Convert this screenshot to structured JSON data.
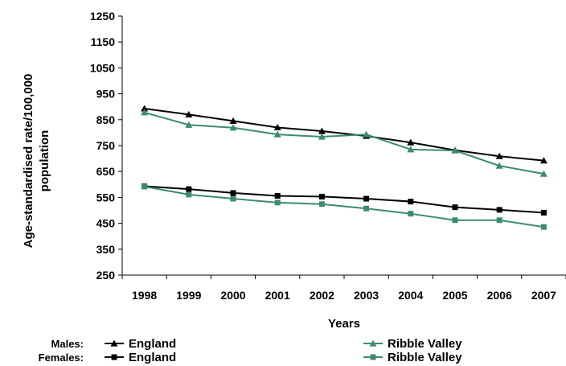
{
  "chart_data": {
    "type": "line",
    "x": [
      "1998",
      "1999",
      "2000",
      "2001",
      "2002",
      "2003",
      "2004",
      "2005",
      "2006",
      "2007"
    ],
    "xlabel": "Years",
    "ylabel_lines": [
      "Age-standardised rate/100,000",
      "population"
    ],
    "ylim": [
      250,
      1250
    ],
    "yticks": [
      250,
      350,
      450,
      550,
      650,
      750,
      850,
      950,
      1050,
      1150,
      1250
    ],
    "grid": false,
    "legend": {
      "placement": "bottom",
      "groups": [
        "Males:",
        "Females:"
      ],
      "entries": [
        "England",
        "Ribble Valley",
        "England",
        "Ribble Valley"
      ]
    },
    "series": [
      {
        "name": "England",
        "group": "Males",
        "marker": "triangle",
        "color": "#000000",
        "values": [
          893,
          870,
          845,
          820,
          806,
          787,
          762,
          732,
          709,
          692
        ]
      },
      {
        "name": "Ribble Valley",
        "group": "Males",
        "marker": "triangle",
        "color": "#3c8c6e",
        "values": [
          878,
          830,
          819,
          793,
          784,
          793,
          735,
          731,
          672,
          641
        ]
      },
      {
        "name": "England",
        "group": "Females",
        "marker": "square",
        "color": "#000000",
        "values": [
          593,
          582,
          567,
          556,
          553,
          545,
          534,
          512,
          502,
          491
        ]
      },
      {
        "name": "Ribble Valley",
        "group": "Females",
        "marker": "square",
        "color": "#3c8c6e",
        "values": [
          592,
          561,
          545,
          530,
          524,
          507,
          487,
          462,
          462,
          436
        ]
      }
    ]
  }
}
